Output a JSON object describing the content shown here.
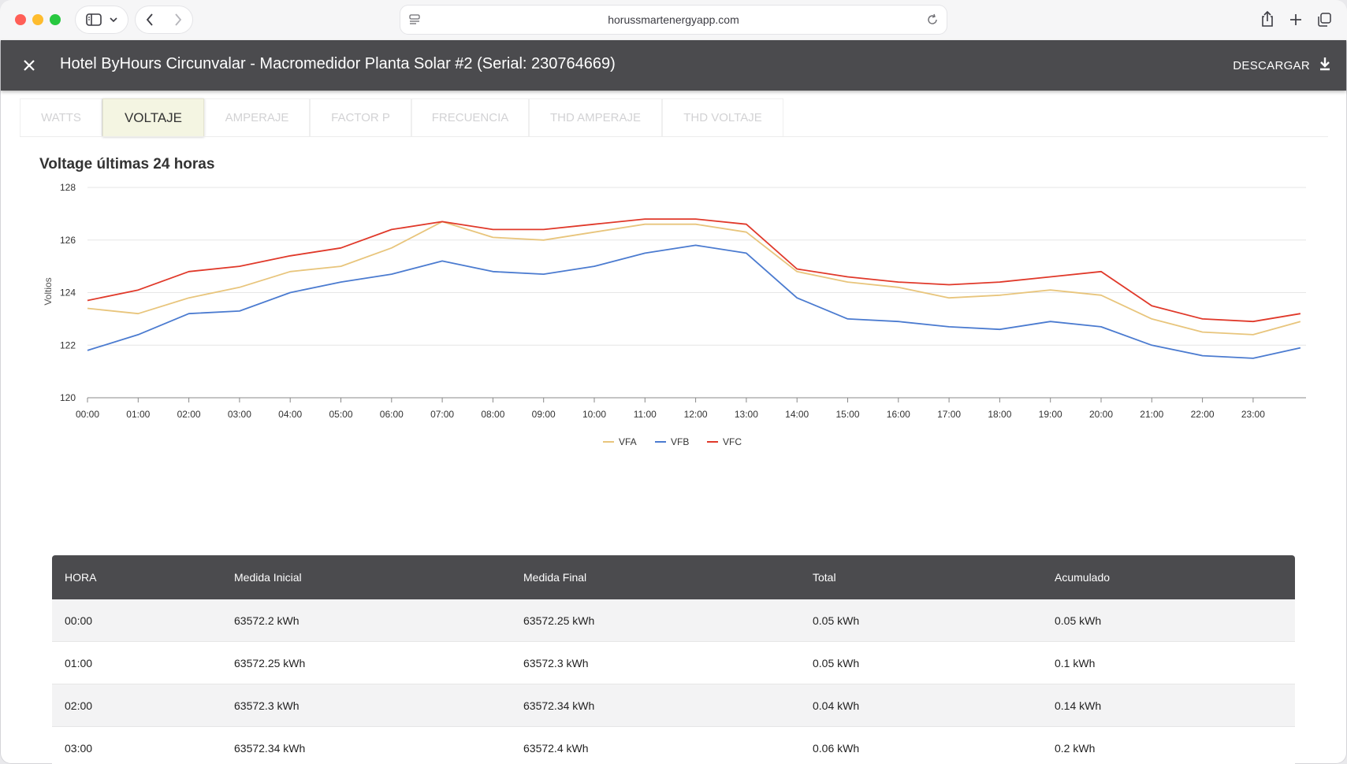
{
  "browser": {
    "url": "horussmartenergyapp.com"
  },
  "header": {
    "title": "Hotel ByHours Circunvalar - Macromedidor Planta Solar #2 (Serial: 230764669)",
    "download_label": "DESCARGAR"
  },
  "tabs": [
    {
      "label": "WATTS",
      "active": false
    },
    {
      "label": "VOLTAJE",
      "active": true
    },
    {
      "label": "AMPERAJE",
      "active": false
    },
    {
      "label": "FACTOR P",
      "active": false
    },
    {
      "label": "FRECUENCIA",
      "active": false
    },
    {
      "label": "THD AMPERAJE",
      "active": false
    },
    {
      "label": "THD VOLTAJE",
      "active": false
    }
  ],
  "chart_title": "Voltage últimas 24 horas",
  "chart_data": {
    "type": "line",
    "title": "Voltage últimas 24 horas",
    "xlabel": "",
    "ylabel": "Voltios",
    "ylim": [
      120,
      128
    ],
    "yticks": [
      "120",
      "122",
      "124",
      "126",
      "128"
    ],
    "x": [
      "00:00",
      "01:00",
      "02:00",
      "03:00",
      "04:00",
      "05:00",
      "06:00",
      "07:00",
      "08:00",
      "09:00",
      "10:00",
      "11:00",
      "12:00",
      "13:00",
      "14:00",
      "15:00",
      "16:00",
      "17:00",
      "18:00",
      "19:00",
      "20:00",
      "21:00",
      "22:00",
      "23:00",
      "23:55"
    ],
    "xticks": [
      "00:00",
      "01:00",
      "02:00",
      "03:00",
      "04:00",
      "05:00",
      "06:00",
      "07:00",
      "08:00",
      "09:00",
      "10:00",
      "11:00",
      "12:00",
      "13:00",
      "14:00",
      "15:00",
      "16:00",
      "17:00",
      "18:00",
      "19:00",
      "20:00",
      "21:00",
      "22:00",
      "23:00"
    ],
    "grid": true,
    "legend": "bottom",
    "series": [
      {
        "name": "VFA",
        "color": "#e8c57c",
        "values": [
          123.4,
          123.2,
          123.8,
          124.2,
          124.8,
          125.0,
          125.7,
          126.7,
          126.1,
          126.0,
          126.3,
          126.6,
          126.6,
          126.3,
          124.8,
          124.4,
          124.2,
          123.8,
          123.9,
          124.1,
          123.9,
          123.0,
          122.5,
          122.4,
          122.9
        ]
      },
      {
        "name": "VFB",
        "color": "#4b7bd0",
        "values": [
          121.8,
          122.4,
          123.2,
          123.3,
          124.0,
          124.4,
          124.7,
          125.2,
          124.8,
          124.7,
          125.0,
          125.5,
          125.8,
          125.5,
          123.8,
          123.0,
          122.9,
          122.7,
          122.6,
          122.9,
          122.7,
          122.0,
          121.6,
          121.5,
          121.9
        ]
      },
      {
        "name": "VFC",
        "color": "#e0392a",
        "values": [
          123.7,
          124.1,
          124.8,
          125.0,
          125.4,
          125.7,
          126.4,
          126.7,
          126.4,
          126.4,
          126.6,
          126.8,
          126.8,
          126.6,
          124.9,
          124.6,
          124.4,
          124.3,
          124.4,
          124.6,
          124.8,
          123.5,
          123.0,
          122.9,
          123.2
        ]
      }
    ]
  },
  "table": {
    "headers": [
      "HORA",
      "Medida Inicial",
      "Medida Final",
      "Total",
      "Acumulado"
    ],
    "rows": [
      [
        "00:00",
        "63572.2 kWh",
        "63572.25 kWh",
        "0.05 kWh",
        "0.05 kWh"
      ],
      [
        "01:00",
        "63572.25 kWh",
        "63572.3 kWh",
        "0.05 kWh",
        "0.1 kWh"
      ],
      [
        "02:00",
        "63572.3 kWh",
        "63572.34 kWh",
        "0.04 kWh",
        "0.14 kWh"
      ],
      [
        "03:00",
        "63572.34 kWh",
        "63572.4 kWh",
        "0.06 kWh",
        "0.2 kWh"
      ]
    ]
  }
}
